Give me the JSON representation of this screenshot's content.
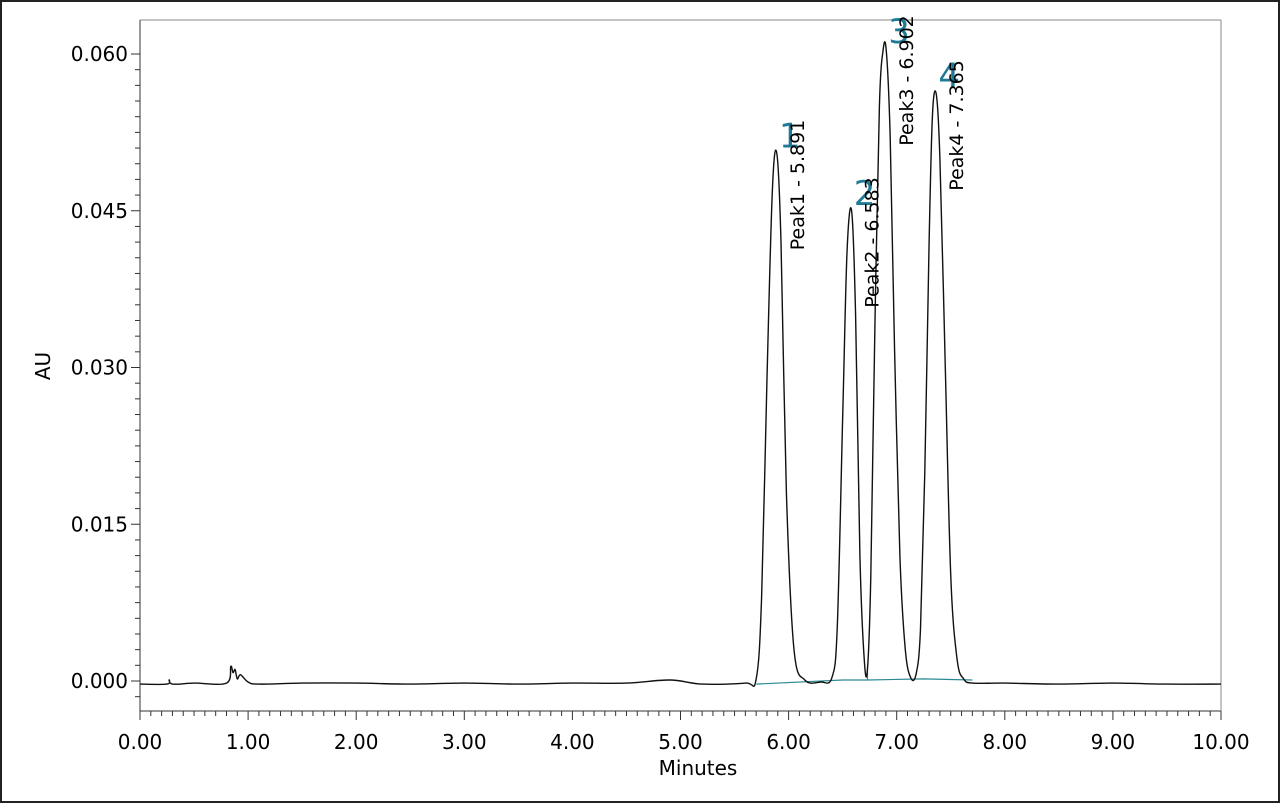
{
  "chart_data": {
    "type": "line",
    "title": "",
    "xlabel": "Minutes",
    "ylabel": "AU",
    "xlim": [
      0,
      10
    ],
    "ylim": [
      -0.003,
      0.0615
    ],
    "x_ticks": [
      "0.00",
      "1.00",
      "2.00",
      "3.00",
      "4.00",
      "5.00",
      "6.00",
      "7.00",
      "8.00",
      "9.00",
      "10.00"
    ],
    "y_ticks": [
      "0.000",
      "0.015",
      "0.030",
      "0.045",
      "0.060"
    ],
    "grid": false,
    "line_color": "#111111",
    "baseline_color": "#2a8a93",
    "label_color": "#1f7a96",
    "series": [
      {
        "x": [
          0.0,
          0.25,
          0.27,
          0.3,
          0.5,
          0.8,
          0.84,
          0.86,
          0.88,
          0.9,
          0.93,
          1.0,
          1.1,
          1.5,
          2.0,
          2.5,
          3.0,
          3.5,
          4.0,
          4.5,
          4.9,
          5.2,
          5.6,
          5.7,
          5.75,
          5.8,
          5.85,
          5.891,
          5.93,
          5.98,
          6.05,
          6.15,
          6.3,
          6.4,
          6.45,
          6.5,
          6.54,
          6.583,
          6.62,
          6.66,
          6.7,
          6.73,
          6.76,
          6.8,
          6.84,
          6.87,
          6.902,
          6.94,
          6.98,
          7.03,
          7.08,
          7.13,
          7.18,
          7.22,
          7.26,
          7.3,
          7.33,
          7.365,
          7.4,
          7.45,
          7.5,
          7.56,
          7.62,
          7.7,
          8.0,
          8.5,
          9.0,
          9.5,
          10.0
        ],
        "values": [
          -0.0003,
          -0.0003,
          0.0001,
          -0.0003,
          -0.0002,
          -0.0002,
          0.0014,
          0.0008,
          0.0011,
          0.0002,
          0.0006,
          -0.0001,
          -0.0003,
          -0.0002,
          -0.0002,
          -0.0003,
          -0.0002,
          -0.0003,
          -0.0002,
          -0.0002,
          0.0001,
          -0.0003,
          -0.0002,
          0.0002,
          0.008,
          0.029,
          0.047,
          0.0505,
          0.042,
          0.018,
          0.003,
          0.0001,
          -0.0001,
          0.0003,
          0.005,
          0.025,
          0.041,
          0.045,
          0.035,
          0.012,
          0.002,
          0.0012,
          0.01,
          0.035,
          0.055,
          0.06,
          0.0605,
          0.052,
          0.032,
          0.012,
          0.003,
          0.0003,
          0.0007,
          0.005,
          0.02,
          0.042,
          0.054,
          0.0562,
          0.05,
          0.03,
          0.01,
          0.002,
          0.0002,
          -0.0002,
          -0.0002,
          -0.0003,
          -0.0002,
          -0.0003,
          -0.0003
        ]
      }
    ],
    "baseline": {
      "x": [
        5.7,
        6.5,
        6.73,
        7.25,
        7.7
      ],
      "values": [
        -0.0003,
        0.0001,
        0.0001,
        0.0002,
        0.0001
      ]
    },
    "annotations": [
      {
        "number": "1",
        "label": "Peak1 - 5.891",
        "x": 5.891,
        "y": 0.0505
      },
      {
        "number": "2",
        "label": "Peak2 - 6.583",
        "x": 6.583,
        "y": 0.045
      },
      {
        "number": "3",
        "label": "Peak3 - 6.902",
        "x": 6.902,
        "y": 0.0605
      },
      {
        "number": "4",
        "label": "Peak4 - 7.365",
        "x": 7.365,
        "y": 0.0562
      }
    ]
  }
}
